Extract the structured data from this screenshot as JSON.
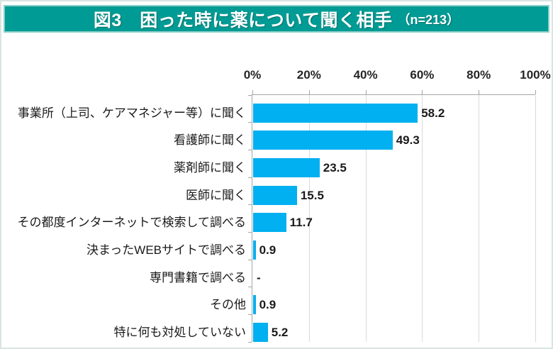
{
  "header": {
    "title": "図3　困った時に薬について聞く相手",
    "suffix": "（n=213）"
  },
  "chart_data": {
    "type": "bar",
    "orientation": "horizontal",
    "title": "図3 困った時に薬について聞く相手（n=213）",
    "sample_size_label": "n=213",
    "categories": [
      "事業所（上司、ケアマネジャー等）に聞く",
      "看護師に聞く",
      "薬剤師に聞く",
      "医師に聞く",
      "その都度インターネットで検索して調べる",
      "決まったWEBサイトで調べる",
      "専門書籍で調べる",
      "その他",
      "特に何も対処していない"
    ],
    "values": [
      58.2,
      49.3,
      23.5,
      15.5,
      11.7,
      0.9,
      null,
      0.9,
      5.2
    ],
    "value_labels": [
      "58.2",
      "49.3",
      "23.5",
      "15.5",
      "11.7",
      "0.9",
      "-",
      "0.9",
      "5.2"
    ],
    "xlabel": "",
    "ylabel": "",
    "x_axis": {
      "position": "top",
      "min": 0,
      "max": 100,
      "unit": "%",
      "tick_labels": [
        "0%",
        "20%",
        "40%",
        "60%",
        "80%",
        "100%"
      ]
    },
    "grid": true,
    "legend": false,
    "colors": {
      "bar": "#00B0F0",
      "gridline": "#D9D9D9",
      "axis_line": "#A6A6A6",
      "banner_bg": "#009B94",
      "banner_border": "#8CCFCA",
      "banner_text": "#FFFFFF"
    }
  }
}
